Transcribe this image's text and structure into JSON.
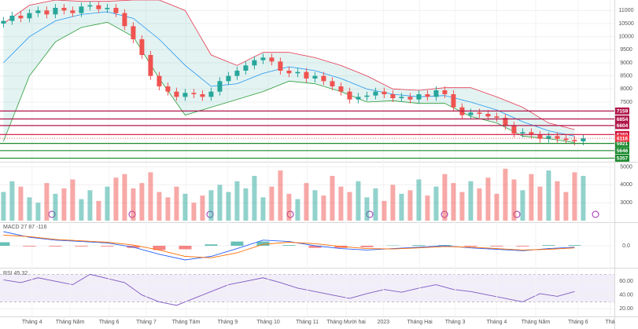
{
  "chart_data": [
    {
      "type": "candlestick",
      "open": [
        10500,
        10600,
        10800,
        10700,
        10900,
        11000,
        10850,
        11100,
        11000,
        10900,
        11150,
        11200,
        11050,
        11100,
        10900,
        10400,
        9900,
        9300,
        8500,
        8100,
        7900,
        7700,
        7850,
        7800,
        7700,
        7900,
        8300,
        8500,
        8700,
        8900,
        9100,
        9200,
        9050,
        8700,
        8600,
        8650,
        8400,
        8500,
        8300,
        8100,
        7900,
        7600,
        7700,
        7750,
        7900,
        7800,
        7650,
        7700,
        7600,
        7800,
        7700,
        7950,
        7800,
        7300,
        7000,
        7100,
        7050,
        6950,
        6900,
        6600,
        6300,
        6350,
        6250,
        6100,
        6200,
        6100,
        6050,
        6000
      ],
      "high": [
        10750,
        10950,
        10950,
        11050,
        11150,
        11150,
        11250,
        11250,
        11150,
        11300,
        11350,
        11350,
        11250,
        11250,
        11050,
        10550,
        10050,
        9450,
        8650,
        8250,
        8050,
        8000,
        8000,
        7950,
        8050,
        8450,
        8650,
        8850,
        9050,
        9250,
        9350,
        9350,
        9200,
        8850,
        8800,
        8800,
        8650,
        8650,
        8450,
        8250,
        8050,
        7850,
        7900,
        8050,
        8050,
        7950,
        7850,
        7850,
        7950,
        7950,
        8100,
        8100,
        7950,
        7450,
        7250,
        7250,
        7200,
        7100,
        7050,
        6750,
        6500,
        6500,
        6400,
        6350,
        6350,
        6250,
        6200,
        6266
      ],
      "low": [
        10350,
        10450,
        10550,
        10550,
        10750,
        10700,
        10700,
        10850,
        10750,
        10750,
        11000,
        10900,
        10900,
        10750,
        10250,
        9750,
        9150,
        8350,
        7950,
        7750,
        7550,
        7550,
        7650,
        7550,
        7550,
        7750,
        8150,
        8350,
        8550,
        8750,
        8950,
        8900,
        8550,
        8450,
        8450,
        8250,
        8250,
        8150,
        7950,
        7750,
        7450,
        7450,
        7550,
        7600,
        7650,
        7500,
        7500,
        7450,
        7450,
        7550,
        7550,
        7650,
        7150,
        6850,
        6850,
        6900,
        6800,
        6750,
        6450,
        6150,
        6150,
        6100,
        5950,
        5950,
        5950,
        5900,
        5850,
        5850
      ],
      "close": [
        10600,
        10800,
        10700,
        10900,
        11000,
        10850,
        11100,
        11000,
        10900,
        11150,
        11200,
        11050,
        11100,
        10900,
        10400,
        9900,
        9300,
        8500,
        8100,
        7900,
        7700,
        7850,
        7800,
        7700,
        7900,
        8300,
        8500,
        8700,
        8900,
        9100,
        9200,
        9050,
        8700,
        8600,
        8650,
        8400,
        8500,
        8300,
        8100,
        7900,
        7600,
        7700,
        7750,
        7900,
        7800,
        7650,
        7700,
        7600,
        7800,
        7700,
        7950,
        7800,
        7300,
        7000,
        7100,
        7050,
        6950,
        6900,
        6600,
        6300,
        6350,
        6250,
        6100,
        6200,
        6100,
        6050,
        6000,
        6116
      ],
      "up_color": "#26a69a",
      "down_color": "#ef5350",
      "last_color": "#f23645",
      "ylim": [
        5250,
        11400
      ],
      "yticks": [
        11000,
        10500,
        10000,
        9500,
        9000,
        8500,
        8000,
        7500
      ],
      "bands": {
        "x": [
          0,
          3,
          6,
          9,
          12,
          15,
          18,
          21,
          24,
          27,
          30,
          33,
          36,
          39,
          42,
          45,
          48,
          51,
          54,
          57,
          60,
          63,
          66
        ],
        "upper": [
          10500,
          11200,
          11400,
          11350,
          11350,
          11400,
          11400,
          11000,
          9300,
          8900,
          9400,
          9400,
          9200,
          8900,
          8500,
          8000,
          7950,
          8050,
          8050,
          7700,
          7300,
          6700,
          6450
        ],
        "middle": [
          9000,
          10000,
          10600,
          10850,
          10950,
          10700,
          9900,
          8900,
          8100,
          8200,
          8600,
          8850,
          8700,
          8400,
          8000,
          7800,
          7700,
          7750,
          7500,
          7200,
          6750,
          6400,
          6200
        ],
        "lower": [
          6000,
          8500,
          9800,
          10350,
          10550,
          10000,
          8400,
          7000,
          7300,
          7600,
          7900,
          8300,
          8200,
          7900,
          7500,
          7550,
          7450,
          7450,
          6950,
          6700,
          6200,
          6100,
          5950
        ],
        "upper_color": "#e53950",
        "middle_color": "#2196f3",
        "lower_color": "#2e9d3a",
        "fill": "rgba(38,166,154,0.13)"
      },
      "levels": {
        "values": [
          7159,
          6854,
          6604,
          6260,
          5921,
          5646,
          5357
        ],
        "colors": [
          "#b0174a",
          "#b0174a",
          "#b0174a",
          "#d0103a",
          "#1b8a2e",
          "#1b8a2e",
          "#1b8a2e"
        ]
      }
    },
    {
      "type": "bar",
      "values": [
        3600,
        4200,
        3900,
        3300,
        3000,
        4100,
        3500,
        3800,
        4300,
        3200,
        3700,
        3100,
        3900,
        4400,
        4600,
        3800,
        4100,
        4700,
        3600,
        3300,
        3900,
        3500,
        3000,
        3400,
        3700,
        4000,
        3600,
        4200,
        3800,
        4500,
        3300,
        3900,
        4800,
        3500,
        3200,
        4100,
        3700,
        3400,
        4500,
        3900,
        3600,
        4200,
        3300,
        3800,
        3100,
        4000,
        3500,
        3700,
        4300,
        3400,
        3900,
        4600,
        4100,
        3600,
        4200,
        3800,
        4400,
        3500,
        4900,
        4300,
        3700,
        4600,
        3900,
        4800,
        4200,
        3600,
        4700,
        4500
      ],
      "up_color": "rgba(38,166,154,0.5)",
      "down_color": "rgba(239,83,80,0.5)",
      "ylim": [
        2000,
        5200
      ],
      "yticks": [
        5000,
        4000,
        3000
      ]
    },
    {
      "type": "macd",
      "title": "MACD 27 87 -116",
      "x": [
        0,
        3,
        6,
        9,
        12,
        15,
        18,
        21,
        24,
        27,
        30,
        33,
        36,
        39,
        42,
        45,
        48,
        51,
        54,
        57,
        60,
        63,
        66
      ],
      "macd": [
        200,
        120,
        80,
        60,
        40,
        -20,
        -120,
        -200,
        -150,
        -40,
        80,
        60,
        0,
        -40,
        -60,
        -40,
        -20,
        0,
        -30,
        -50,
        -70,
        -40,
        -20
      ],
      "signal": [
        150,
        130,
        90,
        70,
        50,
        10,
        -60,
        -150,
        -170,
        -100,
        20,
        50,
        30,
        -10,
        -40,
        -45,
        -30,
        -10,
        -20,
        -40,
        -60,
        -50,
        -30
      ],
      "histogram": [
        50,
        -10,
        -10,
        -10,
        -10,
        -30,
        -60,
        -50,
        20,
        60,
        60,
        10,
        -30,
        -30,
        -20,
        5,
        10,
        10,
        -10,
        -10,
        -10,
        10,
        10
      ],
      "macd_color": "#2962ff",
      "signal_color": "#ff6d00",
      "pos_color": "#26a69a",
      "neg_color": "#ef5350",
      "ylim": [
        -300,
        300
      ],
      "yticks": [
        {
          "value": 0,
          "label": "0.0"
        }
      ]
    },
    {
      "type": "rsi",
      "title": "RSI 45.32",
      "x": [
        0,
        2,
        4,
        6,
        8,
        10,
        12,
        14,
        16,
        18,
        20,
        22,
        24,
        26,
        28,
        30,
        32,
        34,
        36,
        38,
        40,
        42,
        44,
        46,
        48,
        50,
        52,
        54,
        56,
        58,
        60,
        62,
        64,
        66
      ],
      "values": [
        62,
        58,
        65,
        60,
        55,
        70,
        64,
        58,
        40,
        30,
        25,
        35,
        45,
        55,
        60,
        65,
        58,
        50,
        45,
        40,
        35,
        42,
        48,
        44,
        50,
        55,
        48,
        45,
        40,
        35,
        30,
        42,
        38,
        45
      ],
      "color": "#7e57c2",
      "band": [
        30,
        70
      ],
      "band_fill": "rgba(126,87,194,0.1)",
      "ylim": [
        10,
        75
      ],
      "yticks": [
        {
          "value": 60,
          "label": "60.00"
        },
        {
          "value": 40,
          "label": "40.00"
        },
        {
          "value": 20,
          "label": "20.00"
        }
      ],
      "xlim": [
        -0.4,
        70.6
      ],
      "xticks": [
        {
          "value": 3.3,
          "label": "Tháng 4"
        },
        {
          "value": 7.7,
          "label": "Tháng Năm"
        },
        {
          "value": 12.2,
          "label": "Tháng 6"
        },
        {
          "value": 16.5,
          "label": "Tháng 7"
        },
        {
          "value": 21.1,
          "label": "Tháng Tám"
        },
        {
          "value": 25.9,
          "label": "Tháng 9"
        },
        {
          "value": 30.6,
          "label": "Tháng 10"
        },
        {
          "value": 35.1,
          "label": "Tháng 11"
        },
        {
          "value": 39.6,
          "label": "Tháng Mười hai"
        },
        {
          "value": 43.9,
          "label": "2023"
        },
        {
          "value": 48.1,
          "label": "Tháng Hai"
        },
        {
          "value": 52.2,
          "label": "Tháng 3"
        },
        {
          "value": 57,
          "label": "Tháng 4"
        },
        {
          "value": 61.5,
          "label": "Tháng Năm"
        },
        {
          "value": 66.4,
          "label": "Tháng 6"
        },
        {
          "value": 70.1,
          "label": "Thá"
        }
      ]
    }
  ]
}
